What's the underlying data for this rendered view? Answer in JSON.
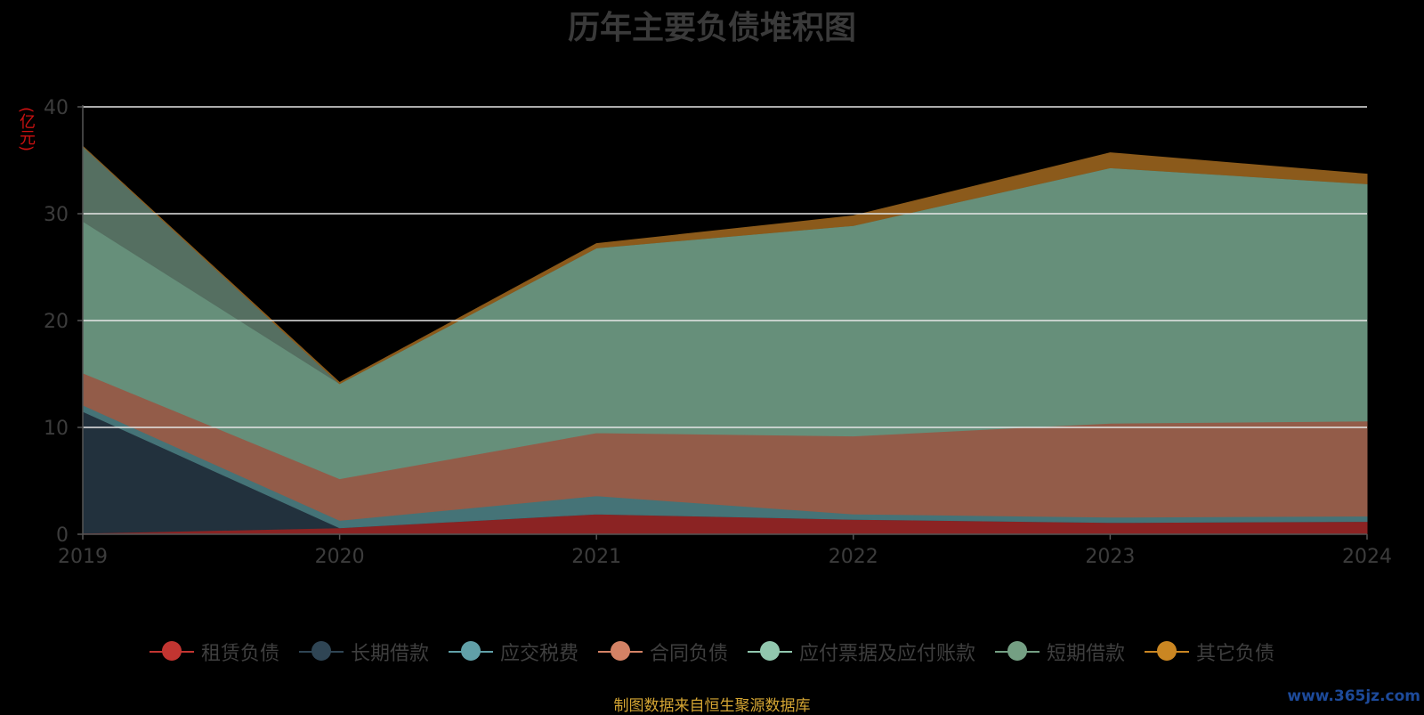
{
  "chart_data": {
    "type": "area",
    "stacked": true,
    "title": "历年主要负债堆积图",
    "ylabel": "(亿元)",
    "xlabel": "",
    "x": [
      "2019",
      "2020",
      "2021",
      "2022",
      "2023",
      "2024"
    ],
    "ylim": [
      0,
      40
    ],
    "yticks": [
      "0",
      "10",
      "20",
      "30",
      "40"
    ],
    "grid": true,
    "legend_position": "bottom",
    "series": [
      {
        "name": "租赁负债",
        "color": "#8b2323",
        "values": [
          0.1,
          0.6,
          1.9,
          1.4,
          1.1,
          1.2
        ]
      },
      {
        "name": "长期借款",
        "color": "#22313d",
        "values": [
          11.4,
          0.0,
          0.0,
          0.0,
          0.0,
          0.0
        ]
      },
      {
        "name": "应交税费",
        "color": "#457377",
        "values": [
          0.6,
          0.7,
          1.7,
          0.5,
          0.5,
          0.5
        ]
      },
      {
        "name": "合同负债",
        "color": "#935c49",
        "values": [
          3.0,
          3.9,
          5.9,
          7.3,
          8.8,
          8.9
        ]
      },
      {
        "name": "应付票据及应付账款",
        "color": "#668f7a",
        "values": [
          14.2,
          8.9,
          17.3,
          19.7,
          23.9,
          22.2
        ]
      },
      {
        "name": "短期借款",
        "color": "#556f61",
        "values": [
          7.0,
          0.0,
          0.0,
          0.0,
          0.0,
          0.0
        ]
      },
      {
        "name": "其它负债",
        "color": "#8b5a1b",
        "values": [
          0.0,
          0.1,
          0.4,
          0.9,
          1.4,
          0.9
        ]
      }
    ]
  },
  "legend_items": [
    {
      "name": "租赁负债",
      "line_color": "#c23531",
      "dot_color": "#c23531"
    },
    {
      "name": "长期借款",
      "line_color": "#2f4554",
      "dot_color": "#2f4554"
    },
    {
      "name": "应交税费",
      "line_color": "#61a0a8",
      "dot_color": "#61a0a8"
    },
    {
      "name": "合同负债",
      "line_color": "#d48265",
      "dot_color": "#d48265"
    },
    {
      "name": "应付票据及应付账款",
      "line_color": "#91c7ae",
      "dot_color": "#91c7ae"
    },
    {
      "name": "短期借款",
      "line_color": "#749f83",
      "dot_color": "#749f83"
    },
    {
      "name": "其它负债",
      "line_color": "#ca8622",
      "dot_color": "#ca8622"
    }
  ],
  "source_note": "制图数据来自恒生聚源数据库",
  "watermark": "www.365jz.com"
}
